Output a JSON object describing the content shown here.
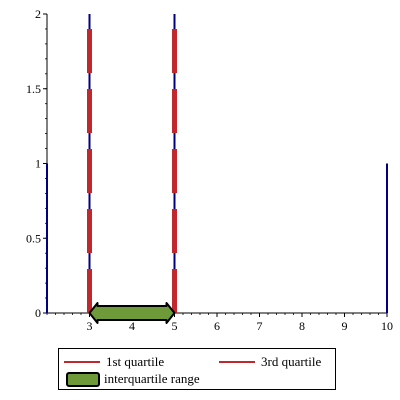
{
  "chart_data": {
    "type": "line",
    "title": "",
    "xlabel": "",
    "ylabel": "",
    "xlim": [
      2,
      10
    ],
    "ylim": [
      0,
      2
    ],
    "x_ticks": [
      3,
      4,
      5,
      6,
      7,
      8,
      9,
      10
    ],
    "y_ticks": [
      0,
      0.5,
      1,
      1.5,
      2
    ],
    "x_tick_labels": [
      "3",
      "4",
      "5",
      "6",
      "7",
      "8",
      "9",
      "10"
    ],
    "y_tick_labels": [
      "0",
      "0.5",
      "1",
      "1.5",
      "2"
    ],
    "data_lines": [
      {
        "x": 2,
        "y0": 0,
        "y1": 1
      },
      {
        "x": 3,
        "y0": 0,
        "y1": 2
      },
      {
        "x": 5,
        "y0": 0,
        "y1": 2
      },
      {
        "x": 10,
        "y0": 0,
        "y1": 1
      }
    ],
    "series": [
      {
        "name": "1st quartile",
        "type": "vline",
        "x": 3,
        "y_range": [
          0,
          2
        ],
        "color": "#c0282d",
        "style": "dashed"
      },
      {
        "name": "3rd quartile",
        "type": "vline",
        "x": 5,
        "y_range": [
          0,
          1.9
        ],
        "color": "#c0282d",
        "style": "dashed"
      },
      {
        "name": "interquartile range",
        "type": "double-arrow",
        "x_range": [
          3,
          5
        ],
        "y": 0,
        "color": "#6f9a3a"
      }
    ],
    "legend": {
      "placement": "bottom",
      "entries": [
        "1st quartile",
        "3rd quartile",
        "interquartile range"
      ]
    },
    "colors": {
      "data_line": "#000080",
      "quartile": "#c0282d",
      "iqr_fill": "#6f9a3a"
    },
    "grid": false
  }
}
